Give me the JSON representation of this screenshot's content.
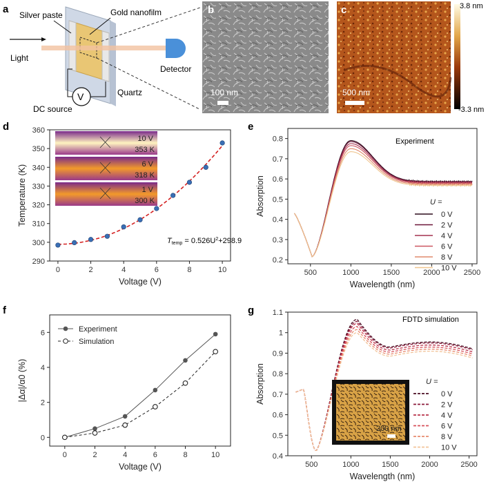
{
  "panels": {
    "a": {
      "label": "a",
      "silver_paste": "Silver paste",
      "gold_nanofilm": "Gold nanofilm",
      "light": "Light",
      "detector": "Detector",
      "quartz": "Quartz",
      "dc_source": "DC source",
      "voltmeter": "V"
    },
    "b": {
      "label": "b",
      "scale_bar": "100 nm"
    },
    "c": {
      "label": "c",
      "scale_bar": "500 nm",
      "colorbar_max": "3.8 nm",
      "colorbar_min": "-3.3 nm"
    },
    "d": {
      "label": "d",
      "insets": [
        {
          "voltage": "10 V",
          "temp": "353 K"
        },
        {
          "voltage": "6 V",
          "temp": "318 K"
        },
        {
          "voltage": "1 V",
          "temp": "300 K"
        }
      ],
      "fit_prefix": "T",
      "fit_sub": "temp",
      "fit_mid": " = 0.526U",
      "fit_sup": "2",
      "fit_suffix": "+298.95"
    },
    "e": {
      "label": "e",
      "title": "Experiment",
      "legend_title": "U ="
    },
    "f": {
      "label": "f"
    },
    "g": {
      "label": "g",
      "title": "FDTD simulation",
      "legend_title": "U =",
      "inset_scale": "200 nm"
    }
  },
  "chart_data": [
    {
      "id": "d",
      "type": "scatter",
      "xlabel": "Voltage (V)",
      "ylabel": "Temperature (K)",
      "xlim": [
        -0.5,
        10.5
      ],
      "ylim": [
        290,
        360
      ],
      "xticks": [
        0,
        2,
        4,
        6,
        8,
        10
      ],
      "yticks": [
        290,
        300,
        310,
        320,
        330,
        340,
        350,
        360
      ],
      "x": [
        0,
        1,
        2,
        3,
        4,
        5,
        6,
        7,
        8,
        9,
        10
      ],
      "y": [
        298.5,
        299.8,
        301.5,
        303.2,
        308.2,
        312.0,
        318.0,
        325.0,
        332.0,
        340.0,
        353.0
      ],
      "fit": {
        "a": 0.526,
        "b": 298.95
      }
    },
    {
      "id": "e",
      "type": "line",
      "xlabel": "Wavelength (nm)",
      "ylabel": "Absorption",
      "xlim": [
        220,
        2560
      ],
      "ylim": [
        0.18,
        0.85
      ],
      "xticks": [
        500,
        1000,
        1500,
        2000,
        2500
      ],
      "yticks": [
        0.2,
        0.3,
        0.4,
        0.5,
        0.6,
        0.7,
        0.8
      ],
      "series": [
        {
          "name": "0 V",
          "color": "#2b0a1a",
          "peak": 0.79,
          "tail": 0.587
        },
        {
          "name": "2 V",
          "color": "#6a1538",
          "peak": 0.785,
          "tail": 0.585
        },
        {
          "name": "4 V",
          "color": "#a3304e",
          "peak": 0.775,
          "tail": 0.582
        },
        {
          "name": "6 V",
          "color": "#cc5560",
          "peak": 0.765,
          "tail": 0.578
        },
        {
          "name": "8 V",
          "color": "#e08a6c",
          "peak": 0.75,
          "tail": 0.573
        },
        {
          "name": "10 V",
          "color": "#efc58e",
          "peak": 0.735,
          "tail": 0.568
        }
      ]
    },
    {
      "id": "f",
      "type": "line",
      "xlabel": "Voltage (V)",
      "ylabel": "|Δα|/α0 (%)",
      "xlim": [
        -1,
        11
      ],
      "ylim": [
        -0.5,
        7
      ],
      "xticks": [
        0,
        2,
        4,
        6,
        8,
        10
      ],
      "yticks": [
        0,
        2,
        4,
        6
      ],
      "x": [
        0,
        2,
        4,
        6,
        8,
        10
      ],
      "series": [
        {
          "name": "Experiment",
          "values": [
            0,
            0.5,
            1.2,
            2.7,
            4.4,
            5.9
          ]
        },
        {
          "name": "Simulation",
          "values": [
            0,
            0.25,
            0.7,
            1.75,
            3.1,
            4.9
          ]
        }
      ]
    },
    {
      "id": "g",
      "type": "line",
      "xlabel": "Wavelength (nm)",
      "ylabel": "Absorption",
      "xlim": [
        200,
        2600
      ],
      "ylim": [
        0.4,
        1.1
      ],
      "xticks": [
        500,
        1000,
        1500,
        2000,
        2500
      ],
      "yticks": [
        0.4,
        0.5,
        0.6,
        0.7,
        0.8,
        0.9,
        1.0,
        1.1
      ],
      "series": [
        {
          "name": "0 V",
          "color": "#4a0d22",
          "peak": 1.065,
          "tail": 0.945
        },
        {
          "name": "2 V",
          "color": "#8a1a3a",
          "peak": 1.055,
          "tail": 0.94
        },
        {
          "name": "4 V",
          "color": "#b83048",
          "peak": 1.045,
          "tail": 0.93
        },
        {
          "name": "6 V",
          "color": "#d6505a",
          "peak": 1.03,
          "tail": 0.92
        },
        {
          "name": "8 V",
          "color": "#e88a6e",
          "peak": 1.015,
          "tail": 0.91
        },
        {
          "name": "10 V",
          "color": "#f2c49a",
          "peak": 1.0,
          "tail": 0.9
        }
      ]
    }
  ]
}
